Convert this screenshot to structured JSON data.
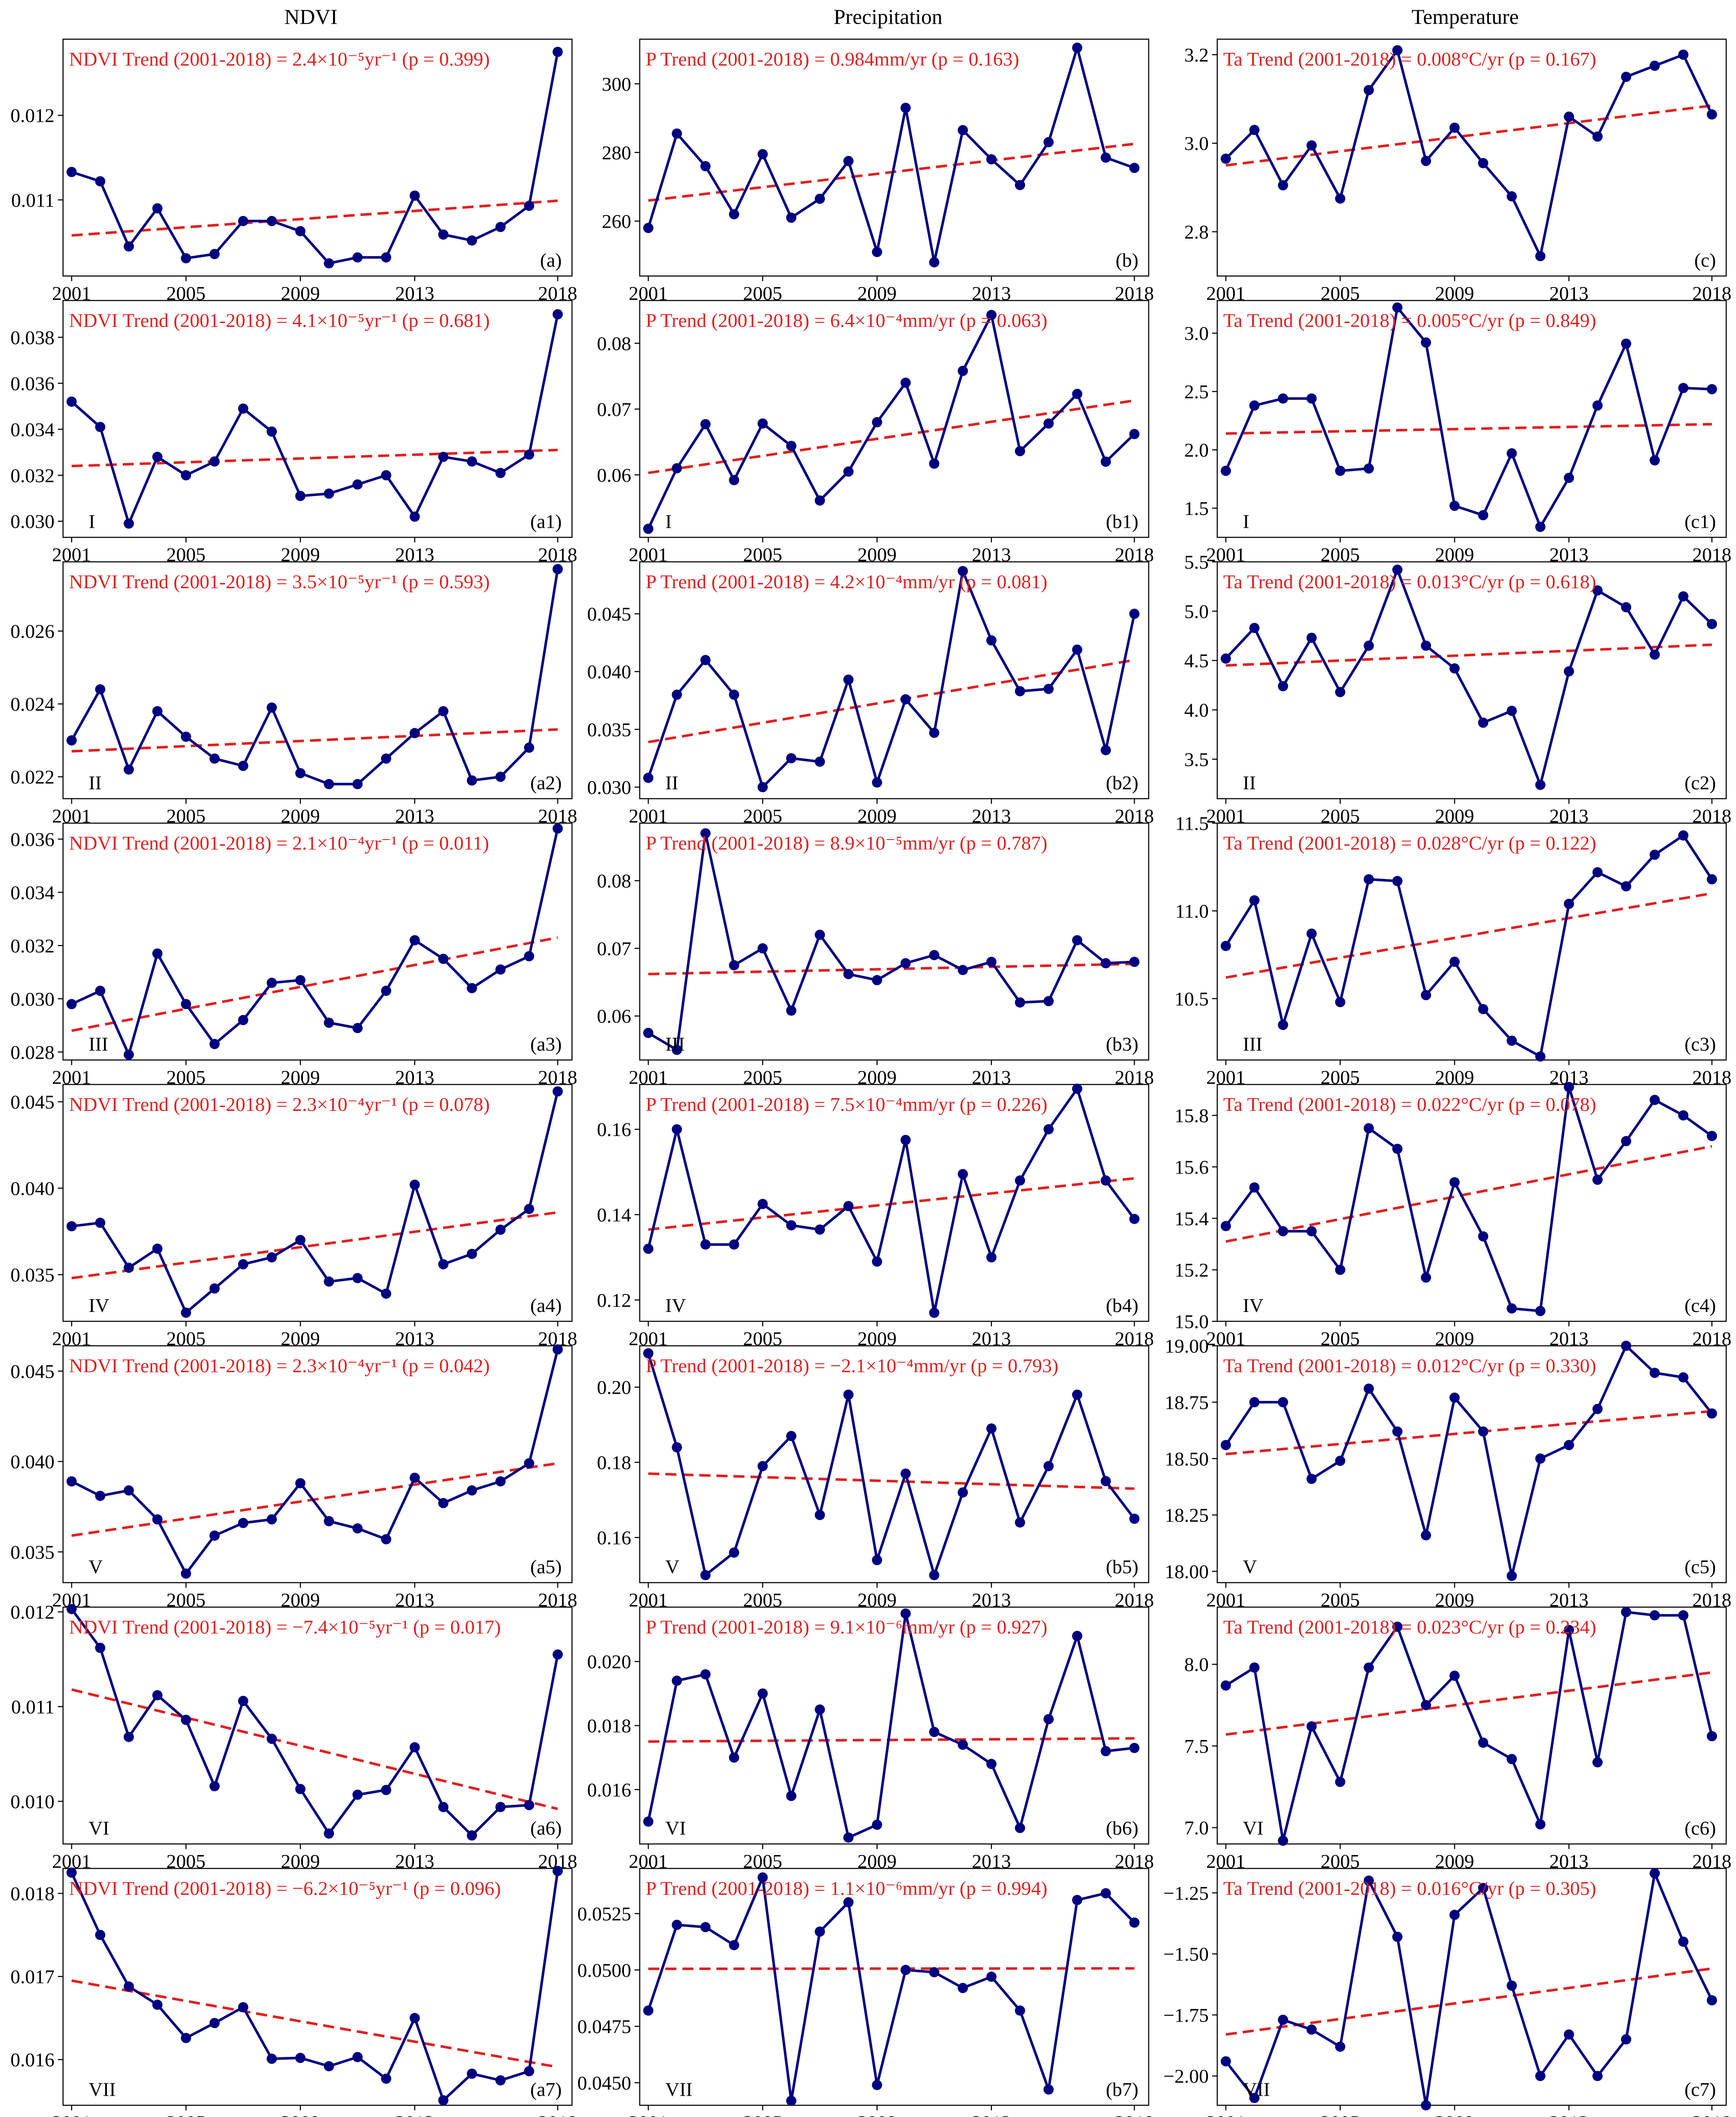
{
  "column_titles": [
    "NDVI",
    "Precipitation",
    "Temperature"
  ],
  "years": [
    2001,
    2002,
    2003,
    2004,
    2005,
    2006,
    2007,
    2008,
    2009,
    2010,
    2011,
    2012,
    2013,
    2014,
    2015,
    2016,
    2017,
    2018
  ],
  "x_tick_labels": [
    "2001",
    "2005",
    "2009",
    "2013",
    "2018"
  ],
  "colors": {
    "series": "#000080",
    "trend": "#e02020",
    "axis": "#000000"
  },
  "chart_data": [
    {
      "type": "line",
      "id": "a",
      "annotation": "NDVI Trend (2001-2018) = 2.4×10⁻⁵yr⁻¹ (p = 0.399)",
      "panel_label": "(a)",
      "region_label": "",
      "ylim": [
        0.0101,
        0.0129
      ],
      "yticks": [
        0.011,
        0.012
      ],
      "ytick_labels": [
        "0.011",
        "0.012"
      ],
      "values": [
        0.01133,
        0.01122,
        0.01045,
        0.0109,
        0.01031,
        0.01036,
        0.01075,
        0.01075,
        0.01063,
        0.01025,
        0.01032,
        0.01032,
        0.01105,
        0.01059,
        0.01052,
        0.01068,
        0.01093,
        0.01275
      ],
      "trend": [
        0.01058,
        0.01099
      ]
    },
    {
      "type": "line",
      "id": "b",
      "annotation": "P Trend (2001-2018) = 0.984mm/yr (p = 0.163)",
      "panel_label": "(b)",
      "region_label": "",
      "ylim": [
        244,
        313
      ],
      "yticks": [
        260,
        280,
        300
      ],
      "ytick_labels": [
        "260",
        "280",
        "300"
      ],
      "values": [
        258,
        285.5,
        276,
        262,
        279.5,
        261,
        266.5,
        277.5,
        251,
        293,
        248,
        286.5,
        278,
        270.5,
        283,
        310.5,
        278.5,
        275.5
      ],
      "trend": [
        266,
        282.5
      ]
    },
    {
      "type": "line",
      "id": "c",
      "annotation": "Ta Trend (2001-2018) = 0.008°C/yr (p = 0.167)",
      "panel_label": "(c)",
      "region_label": "",
      "ylim": [
        2.7,
        3.235
      ],
      "yticks": [
        2.8,
        3.0,
        3.2
      ],
      "ytick_labels": [
        "2.8",
        "3.0",
        "3.2"
      ],
      "values": [
        2.965,
        3.03,
        2.905,
        2.995,
        2.875,
        3.12,
        3.21,
        2.96,
        3.035,
        2.955,
        2.88,
        2.745,
        3.06,
        3.015,
        3.15,
        3.175,
        3.2,
        3.065
      ],
      "trend": [
        2.95,
        3.085
      ]
    },
    {
      "type": "line",
      "id": "a1",
      "annotation": "NDVI Trend (2001-2018) = 4.1×10⁻⁵yr⁻¹ (p = 0.681)",
      "panel_label": "(a1)",
      "region_label": "I",
      "ylim": [
        0.0293,
        0.0396
      ],
      "yticks": [
        0.03,
        0.032,
        0.034,
        0.036,
        0.038
      ],
      "ytick_labels": [
        "0.030",
        "0.032",
        "0.034",
        "0.036",
        "0.038"
      ],
      "values": [
        0.0352,
        0.0341,
        0.0299,
        0.0328,
        0.032,
        0.0326,
        0.0349,
        0.0339,
        0.0311,
        0.0312,
        0.0316,
        0.032,
        0.0302,
        0.0328,
        0.0326,
        0.0321,
        0.0329,
        0.039
      ],
      "trend": [
        0.0324,
        0.0331
      ]
    },
    {
      "type": "line",
      "id": "b1",
      "annotation": "P Trend (2001-2018) = 6.4×10⁻⁴mm/yr (p = 0.063)",
      "panel_label": "(b1)",
      "region_label": "I",
      "ylim": [
        0.0505,
        0.0865
      ],
      "yticks": [
        0.06,
        0.07,
        0.08
      ],
      "ytick_labels": [
        "0.06",
        "0.07",
        "0.08"
      ],
      "values": [
        0.0518,
        0.061,
        0.0677,
        0.0592,
        0.0678,
        0.0644,
        0.0561,
        0.0605,
        0.068,
        0.074,
        0.0617,
        0.0758,
        0.0843,
        0.0636,
        0.0678,
        0.0723,
        0.062,
        0.0662
      ],
      "trend": [
        0.0603,
        0.0713
      ]
    },
    {
      "type": "line",
      "id": "c1",
      "annotation": "Ta Trend (2001-2018) = 0.005°C/yr (p = 0.849)",
      "panel_label": "(c1)",
      "region_label": "I",
      "ylim": [
        1.25,
        3.28
      ],
      "yticks": [
        1.5,
        2.0,
        2.5,
        3.0
      ],
      "ytick_labels": [
        "1.5",
        "2.0",
        "2.5",
        "3.0"
      ],
      "values": [
        1.82,
        2.38,
        2.44,
        2.44,
        1.82,
        1.84,
        3.22,
        2.92,
        1.52,
        1.44,
        1.97,
        1.34,
        1.76,
        2.38,
        2.91,
        1.91,
        2.53,
        2.52
      ],
      "trend": [
        2.14,
        2.22
      ]
    },
    {
      "type": "line",
      "id": "a2",
      "annotation": "NDVI Trend (2001-2018) = 3.5×10⁻⁵yr⁻¹ (p = 0.593)",
      "panel_label": "(a2)",
      "region_label": "II",
      "ylim": [
        0.0214,
        0.0279
      ],
      "yticks": [
        0.022,
        0.024,
        0.026
      ],
      "ytick_labels": [
        "0.022",
        "0.024",
        "0.026"
      ],
      "values": [
        0.023,
        0.0244,
        0.0222,
        0.0238,
        0.0231,
        0.0225,
        0.0223,
        0.0239,
        0.0221,
        0.0218,
        0.0218,
        0.0225,
        0.0232,
        0.0238,
        0.0219,
        0.022,
        0.0228,
        0.0277
      ],
      "trend": [
        0.0227,
        0.0233
      ]
    },
    {
      "type": "line",
      "id": "b2",
      "annotation": "P Trend (2001-2018) = 4.2×10⁻⁴mm/yr (p = 0.081)",
      "panel_label": "(b2)",
      "region_label": "II",
      "ylim": [
        0.029,
        0.0495
      ],
      "yticks": [
        0.03,
        0.035,
        0.04,
        0.045
      ],
      "ytick_labels": [
        "0.030",
        "0.035",
        "0.040",
        "0.045"
      ],
      "values": [
        0.0308,
        0.038,
        0.041,
        0.038,
        0.03,
        0.0325,
        0.0322,
        0.0393,
        0.0304,
        0.0376,
        0.0347,
        0.0487,
        0.0427,
        0.0383,
        0.0385,
        0.0419,
        0.0332,
        0.045
      ],
      "trend": [
        0.0339,
        0.041
      ]
    },
    {
      "type": "line",
      "id": "c2",
      "annotation": "Ta Trend (2001-2018) = 0.013°C/yr (p = 0.618)",
      "panel_label": "(c2)",
      "region_label": "II",
      "ylim": [
        3.1,
        5.5
      ],
      "yticks": [
        3.5,
        4.0,
        4.5,
        5.0,
        5.5
      ],
      "ytick_labels": [
        "3.5",
        "4.0",
        "4.5",
        "5.0",
        "5.5"
      ],
      "values": [
        4.52,
        4.83,
        4.24,
        4.73,
        4.18,
        4.65,
        5.42,
        4.65,
        4.42,
        3.87,
        3.99,
        3.24,
        4.39,
        5.21,
        5.04,
        4.56,
        5.15,
        4.87
      ],
      "trend": [
        4.45,
        4.66
      ]
    },
    {
      "type": "line",
      "id": "a3",
      "annotation": "NDVI Trend (2001-2018) = 2.1×10⁻⁴yr⁻¹ (p = 0.011)",
      "panel_label": "(a3)",
      "region_label": "III",
      "ylim": [
        0.0277,
        0.0366
      ],
      "yticks": [
        0.028,
        0.03,
        0.032,
        0.034,
        0.036
      ],
      "ytick_labels": [
        "0.028",
        "0.030",
        "0.032",
        "0.034",
        "0.036"
      ],
      "values": [
        0.0298,
        0.0303,
        0.0279,
        0.0317,
        0.0298,
        0.0283,
        0.0292,
        0.0306,
        0.0307,
        0.0291,
        0.0289,
        0.0303,
        0.0322,
        0.0315,
        0.0304,
        0.0311,
        0.0316,
        0.0364
      ],
      "trend": [
        0.0288,
        0.0323
      ]
    },
    {
      "type": "line",
      "id": "b3",
      "annotation": "P Trend (2001-2018) = 8.9×10⁻⁵mm/yr (p = 0.787)",
      "panel_label": "(b3)",
      "region_label": "III",
      "ylim": [
        0.0535,
        0.0885
      ],
      "yticks": [
        0.06,
        0.07,
        0.08
      ],
      "ytick_labels": [
        "0.06",
        "0.07",
        "0.08"
      ],
      "values": [
        0.0575,
        0.055,
        0.087,
        0.0675,
        0.07,
        0.0608,
        0.072,
        0.0662,
        0.0653,
        0.0678,
        0.069,
        0.0668,
        0.068,
        0.062,
        0.0622,
        0.0712,
        0.0678,
        0.068
      ],
      "trend": [
        0.0662,
        0.0677
      ]
    },
    {
      "type": "line",
      "id": "c3",
      "annotation": "Ta Trend (2001-2018) = 0.028°C/yr (p = 0.122)",
      "panel_label": "(c3)",
      "region_label": "III",
      "ylim": [
        10.15,
        11.5
      ],
      "yticks": [
        10.5,
        11.0,
        11.5
      ],
      "ytick_labels": [
        "10.5",
        "11.0",
        "11.5"
      ],
      "values": [
        10.8,
        11.06,
        10.35,
        10.87,
        10.48,
        11.18,
        11.17,
        10.52,
        10.71,
        10.44,
        10.26,
        10.17,
        11.04,
        11.22,
        11.14,
        11.32,
        11.43,
        11.18
      ],
      "trend": [
        10.62,
        11.1
      ]
    },
    {
      "type": "line",
      "id": "a4",
      "annotation": "NDVI Trend (2001-2018) = 2.3×10⁻⁴yr⁻¹ (p = 0.078)",
      "panel_label": "(a4)",
      "region_label": "IV",
      "ylim": [
        0.0323,
        0.046
      ],
      "yticks": [
        0.035,
        0.04,
        0.045
      ],
      "ytick_labels": [
        "0.035",
        "0.040",
        "0.045"
      ],
      "values": [
        0.0378,
        0.038,
        0.0354,
        0.0365,
        0.0328,
        0.0342,
        0.0356,
        0.036,
        0.037,
        0.0346,
        0.0348,
        0.0339,
        0.0402,
        0.0356,
        0.0362,
        0.0376,
        0.0388,
        0.0456
      ],
      "trend": [
        0.0348,
        0.0386
      ]
    },
    {
      "type": "line",
      "id": "b4",
      "annotation": "P Trend (2001-2018) = 7.5×10⁻⁴mm/yr (p = 0.226)",
      "panel_label": "(b4)",
      "region_label": "IV",
      "ylim": [
        0.115,
        0.1705
      ],
      "yticks": [
        0.12,
        0.14,
        0.16
      ],
      "ytick_labels": [
        "0.12",
        "0.14",
        "0.16"
      ],
      "values": [
        0.132,
        0.16,
        0.133,
        0.133,
        0.1425,
        0.1375,
        0.1365,
        0.142,
        0.129,
        0.1575,
        0.117,
        0.1495,
        0.13,
        0.148,
        0.16,
        0.1695,
        0.148,
        0.139
      ],
      "trend": [
        0.1365,
        0.1485
      ]
    },
    {
      "type": "line",
      "id": "c4",
      "annotation": "Ta Trend (2001-2018) = 0.022°C/yr (p = 0.078)",
      "panel_label": "(c4)",
      "region_label": "IV",
      "ylim": [
        15.0,
        15.92
      ],
      "yticks": [
        15.0,
        15.2,
        15.4,
        15.6,
        15.8
      ],
      "ytick_labels": [
        "15.0",
        "15.2",
        "15.4",
        "15.6",
        "15.8"
      ],
      "values": [
        15.37,
        15.52,
        15.35,
        15.35,
        15.2,
        15.75,
        15.67,
        15.17,
        15.54,
        15.33,
        15.05,
        15.04,
        15.91,
        15.55,
        15.7,
        15.86,
        15.8,
        15.72
      ],
      "trend": [
        15.31,
        15.68
      ]
    },
    {
      "type": "line",
      "id": "a5",
      "annotation": "NDVI Trend (2001-2018) = 2.3×10⁻⁴yr⁻¹ (p = 0.042)",
      "panel_label": "(a5)",
      "region_label": "V",
      "ylim": [
        0.0333,
        0.0464
      ],
      "yticks": [
        0.035,
        0.04,
        0.045
      ],
      "ytick_labels": [
        "0.035",
        "0.040",
        "0.045"
      ],
      "values": [
        0.0389,
        0.0381,
        0.0384,
        0.0368,
        0.0338,
        0.0359,
        0.0366,
        0.0368,
        0.0388,
        0.0367,
        0.0363,
        0.0357,
        0.0391,
        0.0377,
        0.0384,
        0.0389,
        0.0399,
        0.0462
      ],
      "trend": [
        0.0359,
        0.0399
      ]
    },
    {
      "type": "line",
      "id": "b5",
      "annotation": "P Trend (2001-2018) = −2.1×10⁻⁴mm/yr (p = 0.793)",
      "panel_label": "(b5)",
      "region_label": "V",
      "ylim": [
        0.148,
        0.211
      ],
      "yticks": [
        0.16,
        0.18,
        0.2
      ],
      "ytick_labels": [
        "0.16",
        "0.18",
        "0.20"
      ],
      "values": [
        0.209,
        0.184,
        0.15,
        0.156,
        0.179,
        0.187,
        0.166,
        0.198,
        0.154,
        0.177,
        0.15,
        0.172,
        0.189,
        0.164,
        0.179,
        0.198,
        0.175,
        0.165
      ],
      "trend": [
        0.177,
        0.173
      ]
    },
    {
      "type": "line",
      "id": "c5",
      "annotation": "Ta Trend (2001-2018) = 0.012°C/yr (p = 0.330)",
      "panel_label": "(c5)",
      "region_label": "V",
      "ylim": [
        17.95,
        19.0
      ],
      "yticks": [
        18.0,
        18.25,
        18.5,
        18.75,
        19.0
      ],
      "ytick_labels": [
        "18.00",
        "18.25",
        "18.50",
        "18.75",
        "19.00"
      ],
      "values": [
        18.56,
        18.75,
        18.75,
        18.41,
        18.49,
        18.81,
        18.62,
        18.16,
        18.77,
        18.62,
        17.98,
        18.5,
        18.56,
        18.72,
        19.0,
        18.88,
        18.86,
        18.7
      ],
      "trend": [
        18.52,
        18.71
      ]
    },
    {
      "type": "line",
      "id": "a6",
      "annotation": "NDVI Trend (2001-2018) = −7.4×10⁻⁵yr⁻¹ (p = 0.017)",
      "panel_label": "(a6)",
      "region_label": "VI",
      "ylim": [
        0.00955,
        0.01205
      ],
      "yticks": [
        0.01,
        0.011,
        0.012
      ],
      "ytick_labels": [
        "0.010",
        "0.011",
        "0.012"
      ],
      "values": [
        0.01203,
        0.01162,
        0.01068,
        0.01112,
        0.01086,
        0.01016,
        0.01106,
        0.01066,
        0.01013,
        0.00966,
        0.01007,
        0.01012,
        0.01057,
        0.00994,
        0.00964,
        0.00994,
        0.00996,
        0.01155
      ],
      "trend": [
        0.01118,
        0.00992
      ]
    },
    {
      "type": "line",
      "id": "b6",
      "annotation": "P Trend (2001-2018) = 9.1×10⁻⁶mm/yr (p = 0.927)",
      "panel_label": "(b6)",
      "region_label": "VI",
      "ylim": [
        0.0143,
        0.0217
      ],
      "yticks": [
        0.016,
        0.018,
        0.02
      ],
      "ytick_labels": [
        "0.016",
        "0.018",
        "0.020"
      ],
      "values": [
        0.015,
        0.0194,
        0.0196,
        0.017,
        0.019,
        0.0158,
        0.0185,
        0.0145,
        0.0149,
        0.0215,
        0.0178,
        0.0174,
        0.0168,
        0.0148,
        0.0182,
        0.0208,
        0.0172,
        0.0173
      ],
      "trend": [
        0.0175,
        0.0176
      ]
    },
    {
      "type": "line",
      "id": "c6",
      "annotation": "Ta Trend (2001-2018) = 0.023°C/yr (p = 0.234)",
      "panel_label": "(c6)",
      "region_label": "VI",
      "ylim": [
        6.9,
        8.35
      ],
      "yticks": [
        7.0,
        7.5,
        8.0
      ],
      "ytick_labels": [
        "7.0",
        "7.5",
        "8.0"
      ],
      "values": [
        7.87,
        7.98,
        6.92,
        7.62,
        7.28,
        7.98,
        8.23,
        7.75,
        7.93,
        7.52,
        7.42,
        7.02,
        8.21,
        7.4,
        8.32,
        8.3,
        8.3,
        7.56
      ],
      "trend": [
        7.57,
        7.95
      ]
    },
    {
      "type": "line",
      "id": "a7",
      "annotation": "NDVI Trend (2001-2018) = −6.2×10⁻⁵yr⁻¹ (p = 0.096)",
      "panel_label": "(a7)",
      "region_label": "VII",
      "ylim": [
        0.01545,
        0.0183
      ],
      "yticks": [
        0.016,
        0.017,
        0.018
      ],
      "ytick_labels": [
        "0.016",
        "0.017",
        "0.018"
      ],
      "values": [
        0.01825,
        0.0175,
        0.01688,
        0.01666,
        0.01626,
        0.01644,
        0.01663,
        0.01601,
        0.01602,
        0.01592,
        0.01603,
        0.01577,
        0.0165,
        0.01551,
        0.01583,
        0.01575,
        0.01586,
        0.01827
      ],
      "trend": [
        0.01695,
        0.01591
      ]
    },
    {
      "type": "line",
      "id": "b7",
      "annotation": "P Trend (2001-2018) = 1.1×10⁻⁶mm/yr (p = 0.994)",
      "panel_label": "(b7)",
      "region_label": "VII",
      "ylim": [
        0.044,
        0.0545
      ],
      "yticks": [
        0.045,
        0.0475,
        0.05,
        0.0525
      ],
      "ytick_labels": [
        "0.0450",
        "0.0475",
        "0.0500",
        "0.0525"
      ],
      "values": [
        0.0482,
        0.052,
        0.0519,
        0.0511,
        0.0541,
        0.0442,
        0.0517,
        0.053,
        0.0449,
        0.05,
        0.0499,
        0.0492,
        0.0497,
        0.0482,
        0.0447,
        0.0531,
        0.0534,
        0.0521
      ],
      "trend": [
        0.05005,
        0.05007
      ]
    },
    {
      "type": "line",
      "id": "c7",
      "annotation": "Ta Trend (2001-2018) = 0.016°C/yr (p = 0.305)",
      "panel_label": "(c7)",
      "region_label": "VII",
      "ylim": [
        -2.12,
        -1.15
      ],
      "yticks": [
        -2.0,
        -1.75,
        -1.5,
        -1.25
      ],
      "ytick_labels": [
        "−2.00",
        "−1.75",
        "−1.50",
        "−1.25"
      ],
      "values": [
        -1.94,
        -2.09,
        -1.77,
        -1.81,
        -1.88,
        -1.2,
        -1.43,
        -2.12,
        -1.34,
        -1.23,
        -1.63,
        -2.0,
        -1.83,
        -2.0,
        -1.85,
        -1.17,
        -1.45,
        -1.69
      ],
      "trend": [
        -1.83,
        -1.56
      ]
    }
  ]
}
